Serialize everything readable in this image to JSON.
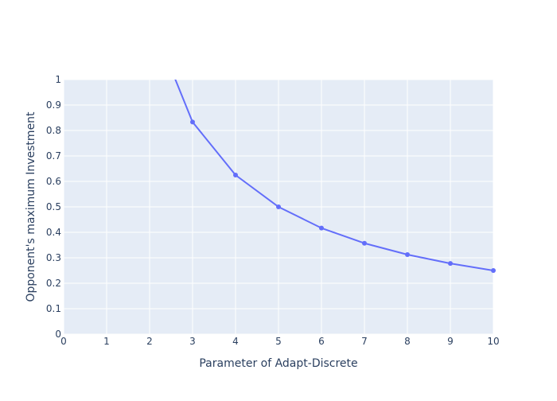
{
  "chart_data": {
    "type": "line",
    "title": "",
    "xlabel": "Parameter of Adapt-Discrete",
    "ylabel": "Opponent's maximum Investment",
    "xlim": [
      0,
      10
    ],
    "ylim": [
      0,
      1
    ],
    "x_ticks": [
      "0",
      "1",
      "2",
      "3",
      "4",
      "5",
      "6",
      "7",
      "8",
      "9",
      "10"
    ],
    "y_ticks": [
      "0",
      "0.1",
      "0.2",
      "0.3",
      "0.4",
      "0.5",
      "0.6",
      "0.7",
      "0.8",
      "0.9",
      "1"
    ],
    "grid": true,
    "legend": "none",
    "series": [
      {
        "line_points": [
          {
            "x": 2,
            "y": 1.25
          },
          {
            "x": 3,
            "y": 0.8333
          },
          {
            "x": 4,
            "y": 0.625
          },
          {
            "x": 5,
            "y": 0.5
          },
          {
            "x": 6,
            "y": 0.4167
          },
          {
            "x": 7,
            "y": 0.3571
          },
          {
            "x": 8,
            "y": 0.3125
          },
          {
            "x": 9,
            "y": 0.2778
          },
          {
            "x": 10,
            "y": 0.25
          }
        ],
        "marker_points": [
          {
            "x": 3,
            "y": 0.8333
          },
          {
            "x": 4,
            "y": 0.625
          },
          {
            "x": 5,
            "y": 0.5
          },
          {
            "x": 6,
            "y": 0.4167
          },
          {
            "x": 7,
            "y": 0.3571
          },
          {
            "x": 8,
            "y": 0.3125
          },
          {
            "x": 9,
            "y": 0.2778
          },
          {
            "x": 10,
            "y": 0.25
          }
        ],
        "color": "#636efa"
      }
    ],
    "colors": {
      "plot_background": "#e5ecf6",
      "grid": "#ffffff",
      "text": "#2a3f5f"
    }
  }
}
